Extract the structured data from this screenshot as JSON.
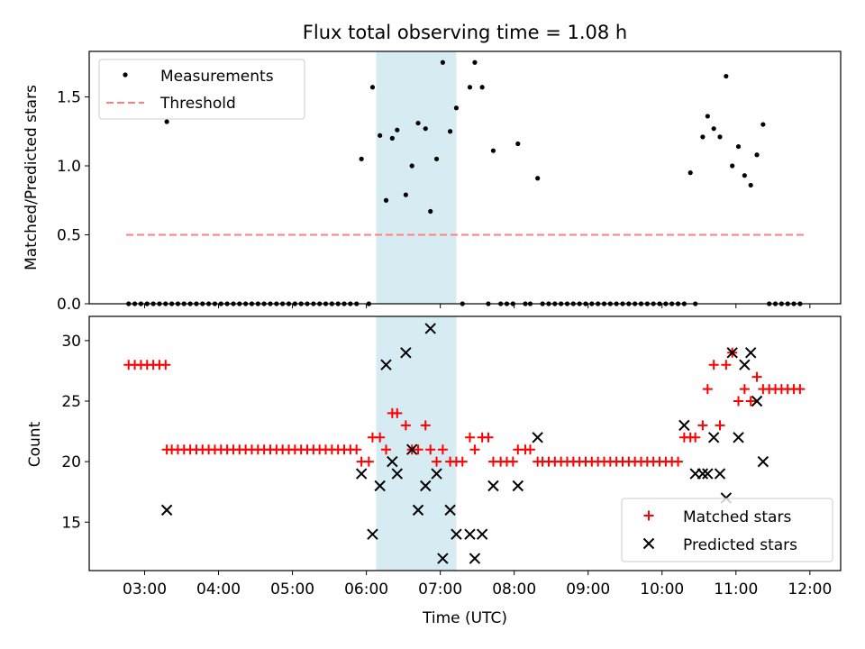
{
  "chart_data": [
    {
      "type": "scatter",
      "title": "Flux total observing time = 1.08 h",
      "ylabel": "Matched/Predicted stars",
      "ylim": [
        0,
        1.83
      ],
      "yticks": [
        0.0,
        0.5,
        1.0,
        1.5
      ],
      "ytick_labels": [
        "0.0",
        "0.5",
        "1.0",
        "1.5"
      ],
      "highlight_span": [
        "06:08",
        "07:13"
      ],
      "legend": {
        "position": "top-left",
        "entries": [
          "Measurements",
          "Threshold"
        ]
      },
      "threshold": {
        "name": "Threshold",
        "y": 0.5,
        "x": [
          "02:45",
          "11:55"
        ],
        "color": "#ff8080"
      },
      "series": [
        {
          "name": "Measurements",
          "color": "#000000",
          "points": [
            [
              "02:47",
              0
            ],
            [
              "02:52",
              0
            ],
            [
              "02:57",
              0
            ],
            [
              "03:02",
              0
            ],
            [
              "03:07",
              0
            ],
            [
              "03:12",
              0
            ],
            [
              "03:17",
              0
            ],
            [
              "03:18",
              1.32
            ],
            [
              "03:22",
              0
            ],
            [
              "03:27",
              0
            ],
            [
              "03:32",
              0
            ],
            [
              "03:37",
              0
            ],
            [
              "03:42",
              0
            ],
            [
              "03:47",
              0
            ],
            [
              "03:52",
              0
            ],
            [
              "03:57",
              0
            ],
            [
              "04:02",
              0
            ],
            [
              "04:07",
              0
            ],
            [
              "04:12",
              0
            ],
            [
              "04:17",
              0
            ],
            [
              "04:22",
              0
            ],
            [
              "04:27",
              0
            ],
            [
              "04:32",
              0
            ],
            [
              "04:37",
              0
            ],
            [
              "04:42",
              0
            ],
            [
              "04:47",
              0
            ],
            [
              "04:52",
              0
            ],
            [
              "04:57",
              0
            ],
            [
              "05:02",
              0
            ],
            [
              "05:07",
              0
            ],
            [
              "05:12",
              0
            ],
            [
              "05:17",
              0
            ],
            [
              "05:22",
              0
            ],
            [
              "05:27",
              0
            ],
            [
              "05:32",
              0
            ],
            [
              "05:37",
              0
            ],
            [
              "05:42",
              0
            ],
            [
              "05:47",
              0
            ],
            [
              "05:52",
              0
            ],
            [
              "05:56",
              1.05
            ],
            [
              "06:02",
              0
            ],
            [
              "06:05",
              1.57
            ],
            [
              "06:11",
              1.22
            ],
            [
              "06:16",
              0.75
            ],
            [
              "06:21",
              1.2
            ],
            [
              "06:25",
              1.26
            ],
            [
              "06:32",
              0.79
            ],
            [
              "06:37",
              1.0
            ],
            [
              "06:42",
              1.31
            ],
            [
              "06:48",
              1.27
            ],
            [
              "06:52",
              0.67
            ],
            [
              "06:57",
              1.05
            ],
            [
              "07:02",
              1.75
            ],
            [
              "07:08",
              1.25
            ],
            [
              "07:13",
              1.42
            ],
            [
              "07:18",
              0
            ],
            [
              "07:24",
              1.57
            ],
            [
              "07:28",
              1.75
            ],
            [
              "07:34",
              1.57
            ],
            [
              "07:39",
              0
            ],
            [
              "07:43",
              1.11
            ],
            [
              "07:49",
              0
            ],
            [
              "07:54",
              0
            ],
            [
              "07:59",
              0
            ],
            [
              "08:03",
              1.16
            ],
            [
              "08:09",
              0
            ],
            [
              "08:13",
              0
            ],
            [
              "08:19",
              0.91
            ],
            [
              "08:23",
              0
            ],
            [
              "08:28",
              0
            ],
            [
              "08:33",
              0
            ],
            [
              "08:38",
              0
            ],
            [
              "08:43",
              0
            ],
            [
              "08:48",
              0
            ],
            [
              "08:53",
              0
            ],
            [
              "08:58",
              0
            ],
            [
              "09:03",
              0
            ],
            [
              "09:08",
              0
            ],
            [
              "09:13",
              0
            ],
            [
              "09:18",
              0
            ],
            [
              "09:23",
              0
            ],
            [
              "09:28",
              0
            ],
            [
              "09:33",
              0
            ],
            [
              "09:38",
              0
            ],
            [
              "09:43",
              0
            ],
            [
              "09:48",
              0
            ],
            [
              "09:53",
              0
            ],
            [
              "09:58",
              0
            ],
            [
              "10:03",
              0
            ],
            [
              "10:08",
              0
            ],
            [
              "10:13",
              0
            ],
            [
              "10:18",
              0
            ],
            [
              "10:23",
              0.95
            ],
            [
              "10:27",
              0
            ],
            [
              "10:33",
              1.21
            ],
            [
              "10:37",
              1.36
            ],
            [
              "10:42",
              1.27
            ],
            [
              "10:47",
              1.21
            ],
            [
              "10:52",
              1.65
            ],
            [
              "10:57",
              1.0
            ],
            [
              "11:02",
              1.14
            ],
            [
              "11:07",
              0.93
            ],
            [
              "11:12",
              0.86
            ],
            [
              "11:17",
              1.08
            ],
            [
              "11:22",
              1.3
            ],
            [
              "11:27",
              0
            ],
            [
              "11:32",
              0
            ],
            [
              "11:37",
              0
            ],
            [
              "11:42",
              0
            ],
            [
              "11:47",
              0
            ],
            [
              "11:52",
              0
            ]
          ]
        }
      ]
    },
    {
      "type": "scatter",
      "ylabel": "Count",
      "xlabel": "Time (UTC)",
      "ylim": [
        11,
        32
      ],
      "yticks": [
        15,
        20,
        25,
        30
      ],
      "ytick_labels": [
        "15",
        "20",
        "25",
        "30"
      ],
      "xlim": [
        "02:15",
        "12:25"
      ],
      "xticks": [
        "03:00",
        "04:00",
        "05:00",
        "06:00",
        "07:00",
        "08:00",
        "09:00",
        "10:00",
        "11:00",
        "12:00"
      ],
      "highlight_span": [
        "06:08",
        "07:13"
      ],
      "legend": {
        "position": "bottom-right",
        "entries": [
          "Matched stars",
          "Predicted stars"
        ]
      },
      "series": [
        {
          "name": "Matched stars",
          "marker": "+",
          "color": "#ff0000",
          "points": [
            [
              "02:47",
              28
            ],
            [
              "02:52",
              28
            ],
            [
              "02:57",
              28
            ],
            [
              "03:02",
              28
            ],
            [
              "03:07",
              28
            ],
            [
              "03:12",
              28
            ],
            [
              "03:17",
              28
            ],
            [
              "03:18",
              21
            ],
            [
              "03:22",
              21
            ],
            [
              "03:27",
              21
            ],
            [
              "03:32",
              21
            ],
            [
              "03:37",
              21
            ],
            [
              "03:42",
              21
            ],
            [
              "03:47",
              21
            ],
            [
              "03:52",
              21
            ],
            [
              "03:57",
              21
            ],
            [
              "04:02",
              21
            ],
            [
              "04:07",
              21
            ],
            [
              "04:12",
              21
            ],
            [
              "04:17",
              21
            ],
            [
              "04:22",
              21
            ],
            [
              "04:27",
              21
            ],
            [
              "04:32",
              21
            ],
            [
              "04:37",
              21
            ],
            [
              "04:42",
              21
            ],
            [
              "04:47",
              21
            ],
            [
              "04:52",
              21
            ],
            [
              "04:57",
              21
            ],
            [
              "05:02",
              21
            ],
            [
              "05:07",
              21
            ],
            [
              "05:12",
              21
            ],
            [
              "05:17",
              21
            ],
            [
              "05:22",
              21
            ],
            [
              "05:27",
              21
            ],
            [
              "05:32",
              21
            ],
            [
              "05:37",
              21
            ],
            [
              "05:42",
              21
            ],
            [
              "05:47",
              21
            ],
            [
              "05:52",
              21
            ],
            [
              "05:56",
              20
            ],
            [
              "06:02",
              20
            ],
            [
              "06:05",
              22
            ],
            [
              "06:11",
              22
            ],
            [
              "06:16",
              21
            ],
            [
              "06:21",
              24
            ],
            [
              "06:25",
              24
            ],
            [
              "06:32",
              23
            ],
            [
              "06:37",
              21
            ],
            [
              "06:42",
              21
            ],
            [
              "06:48",
              23
            ],
            [
              "06:52",
              21
            ],
            [
              "06:57",
              20
            ],
            [
              "07:02",
              21
            ],
            [
              "07:08",
              20
            ],
            [
              "07:13",
              20
            ],
            [
              "07:18",
              20
            ],
            [
              "07:24",
              22
            ],
            [
              "07:28",
              21
            ],
            [
              "07:34",
              22
            ],
            [
              "07:39",
              22
            ],
            [
              "07:43",
              20
            ],
            [
              "07:49",
              20
            ],
            [
              "07:54",
              20
            ],
            [
              "07:59",
              20
            ],
            [
              "08:03",
              21
            ],
            [
              "08:09",
              21
            ],
            [
              "08:13",
              21
            ],
            [
              "08:19",
              20
            ],
            [
              "08:23",
              20
            ],
            [
              "08:28",
              20
            ],
            [
              "08:33",
              20
            ],
            [
              "08:38",
              20
            ],
            [
              "08:43",
              20
            ],
            [
              "08:48",
              20
            ],
            [
              "08:53",
              20
            ],
            [
              "08:58",
              20
            ],
            [
              "09:03",
              20
            ],
            [
              "09:08",
              20
            ],
            [
              "09:13",
              20
            ],
            [
              "09:18",
              20
            ],
            [
              "09:23",
              20
            ],
            [
              "09:28",
              20
            ],
            [
              "09:33",
              20
            ],
            [
              "09:38",
              20
            ],
            [
              "09:43",
              20
            ],
            [
              "09:48",
              20
            ],
            [
              "09:53",
              20
            ],
            [
              "09:58",
              20
            ],
            [
              "10:03",
              20
            ],
            [
              "10:08",
              20
            ],
            [
              "10:13",
              20
            ],
            [
              "10:18",
              22
            ],
            [
              "10:23",
              22
            ],
            [
              "10:27",
              22
            ],
            [
              "10:33",
              23
            ],
            [
              "10:37",
              26
            ],
            [
              "10:42",
              28
            ],
            [
              "10:47",
              23
            ],
            [
              "10:52",
              28
            ],
            [
              "10:57",
              29
            ],
            [
              "11:02",
              25
            ],
            [
              "11:07",
              26
            ],
            [
              "11:12",
              25
            ],
            [
              "11:17",
              27
            ],
            [
              "11:22",
              26
            ],
            [
              "11:27",
              26
            ],
            [
              "11:32",
              26
            ],
            [
              "11:37",
              26
            ],
            [
              "11:42",
              26
            ],
            [
              "11:47",
              26
            ],
            [
              "11:52",
              26
            ]
          ]
        },
        {
          "name": "Predicted stars",
          "marker": "x",
          "color": "#000000",
          "points": [
            [
              "03:18",
              16
            ],
            [
              "05:56",
              19
            ],
            [
              "06:05",
              14
            ],
            [
              "06:11",
              18
            ],
            [
              "06:16",
              28
            ],
            [
              "06:21",
              20
            ],
            [
              "06:25",
              19
            ],
            [
              "06:32",
              29
            ],
            [
              "06:37",
              21
            ],
            [
              "06:42",
              16
            ],
            [
              "06:48",
              18
            ],
            [
              "06:52",
              31
            ],
            [
              "06:57",
              19
            ],
            [
              "07:02",
              12
            ],
            [
              "07:08",
              16
            ],
            [
              "07:13",
              14
            ],
            [
              "07:24",
              14
            ],
            [
              "07:28",
              12
            ],
            [
              "07:34",
              14
            ],
            [
              "07:43",
              18
            ],
            [
              "08:03",
              18
            ],
            [
              "08:19",
              22
            ],
            [
              "10:18",
              23
            ],
            [
              "10:27",
              19
            ],
            [
              "10:33",
              19
            ],
            [
              "10:37",
              19
            ],
            [
              "10:42",
              22
            ],
            [
              "10:47",
              19
            ],
            [
              "10:52",
              17
            ],
            [
              "10:57",
              29
            ],
            [
              "11:02",
              22
            ],
            [
              "11:07",
              28
            ],
            [
              "11:12",
              29
            ],
            [
              "11:17",
              25
            ],
            [
              "11:22",
              20
            ]
          ]
        }
      ]
    }
  ]
}
